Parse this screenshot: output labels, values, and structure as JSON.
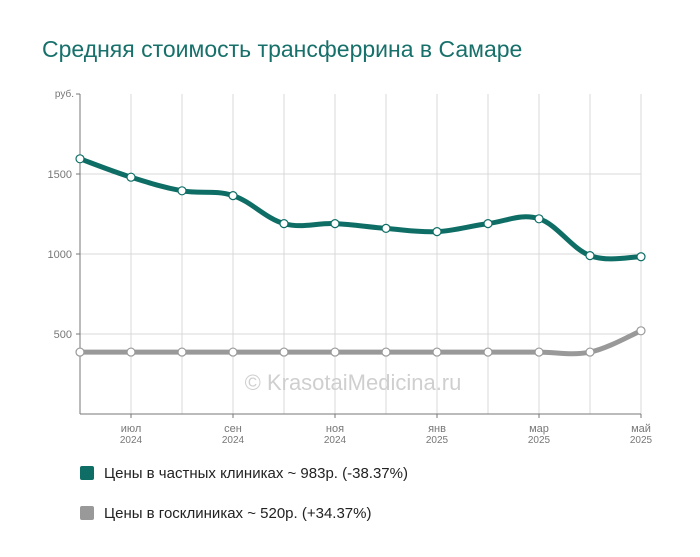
{
  "title": "Средняя стоимость трансферрина в Самаре",
  "watermark": "© KrasotaiMedicina.ru",
  "legend": [
    {
      "label": "Цены в частных клиниках ~ 983р. (-38.37%)",
      "color": "#0e6e66"
    },
    {
      "label": "Цены в госклиниках ~ 520р. (+34.37%)",
      "color": "#999999"
    }
  ],
  "chart_data": {
    "type": "line",
    "y_unit_label": "руб.",
    "ylim": [
      0,
      2000
    ],
    "y_ticks": [
      500,
      1000,
      1500
    ],
    "x_tick_labels": [
      {
        "index": 1,
        "month": "июл",
        "year": "2024"
      },
      {
        "index": 3,
        "month": "сен",
        "year": "2024"
      },
      {
        "index": 5,
        "month": "ноя",
        "year": "2024"
      },
      {
        "index": 7,
        "month": "янв",
        "year": "2025"
      },
      {
        "index": 9,
        "month": "мар",
        "year": "2025"
      },
      {
        "index": 11,
        "month": "май",
        "year": "2025"
      }
    ],
    "points_count": 12,
    "series": [
      {
        "name": "Цены в частных клиниках",
        "color": "#0e6e66",
        "values": [
          1595,
          1480,
          1395,
          1365,
          1190,
          1190,
          1160,
          1140,
          1190,
          1220,
          990,
          983
        ]
      },
      {
        "name": "Цены в госклиниках",
        "color": "#999999",
        "values": [
          387,
          387,
          387,
          387,
          387,
          387,
          387,
          387,
          387,
          387,
          387,
          520
        ]
      }
    ],
    "grid": true
  }
}
